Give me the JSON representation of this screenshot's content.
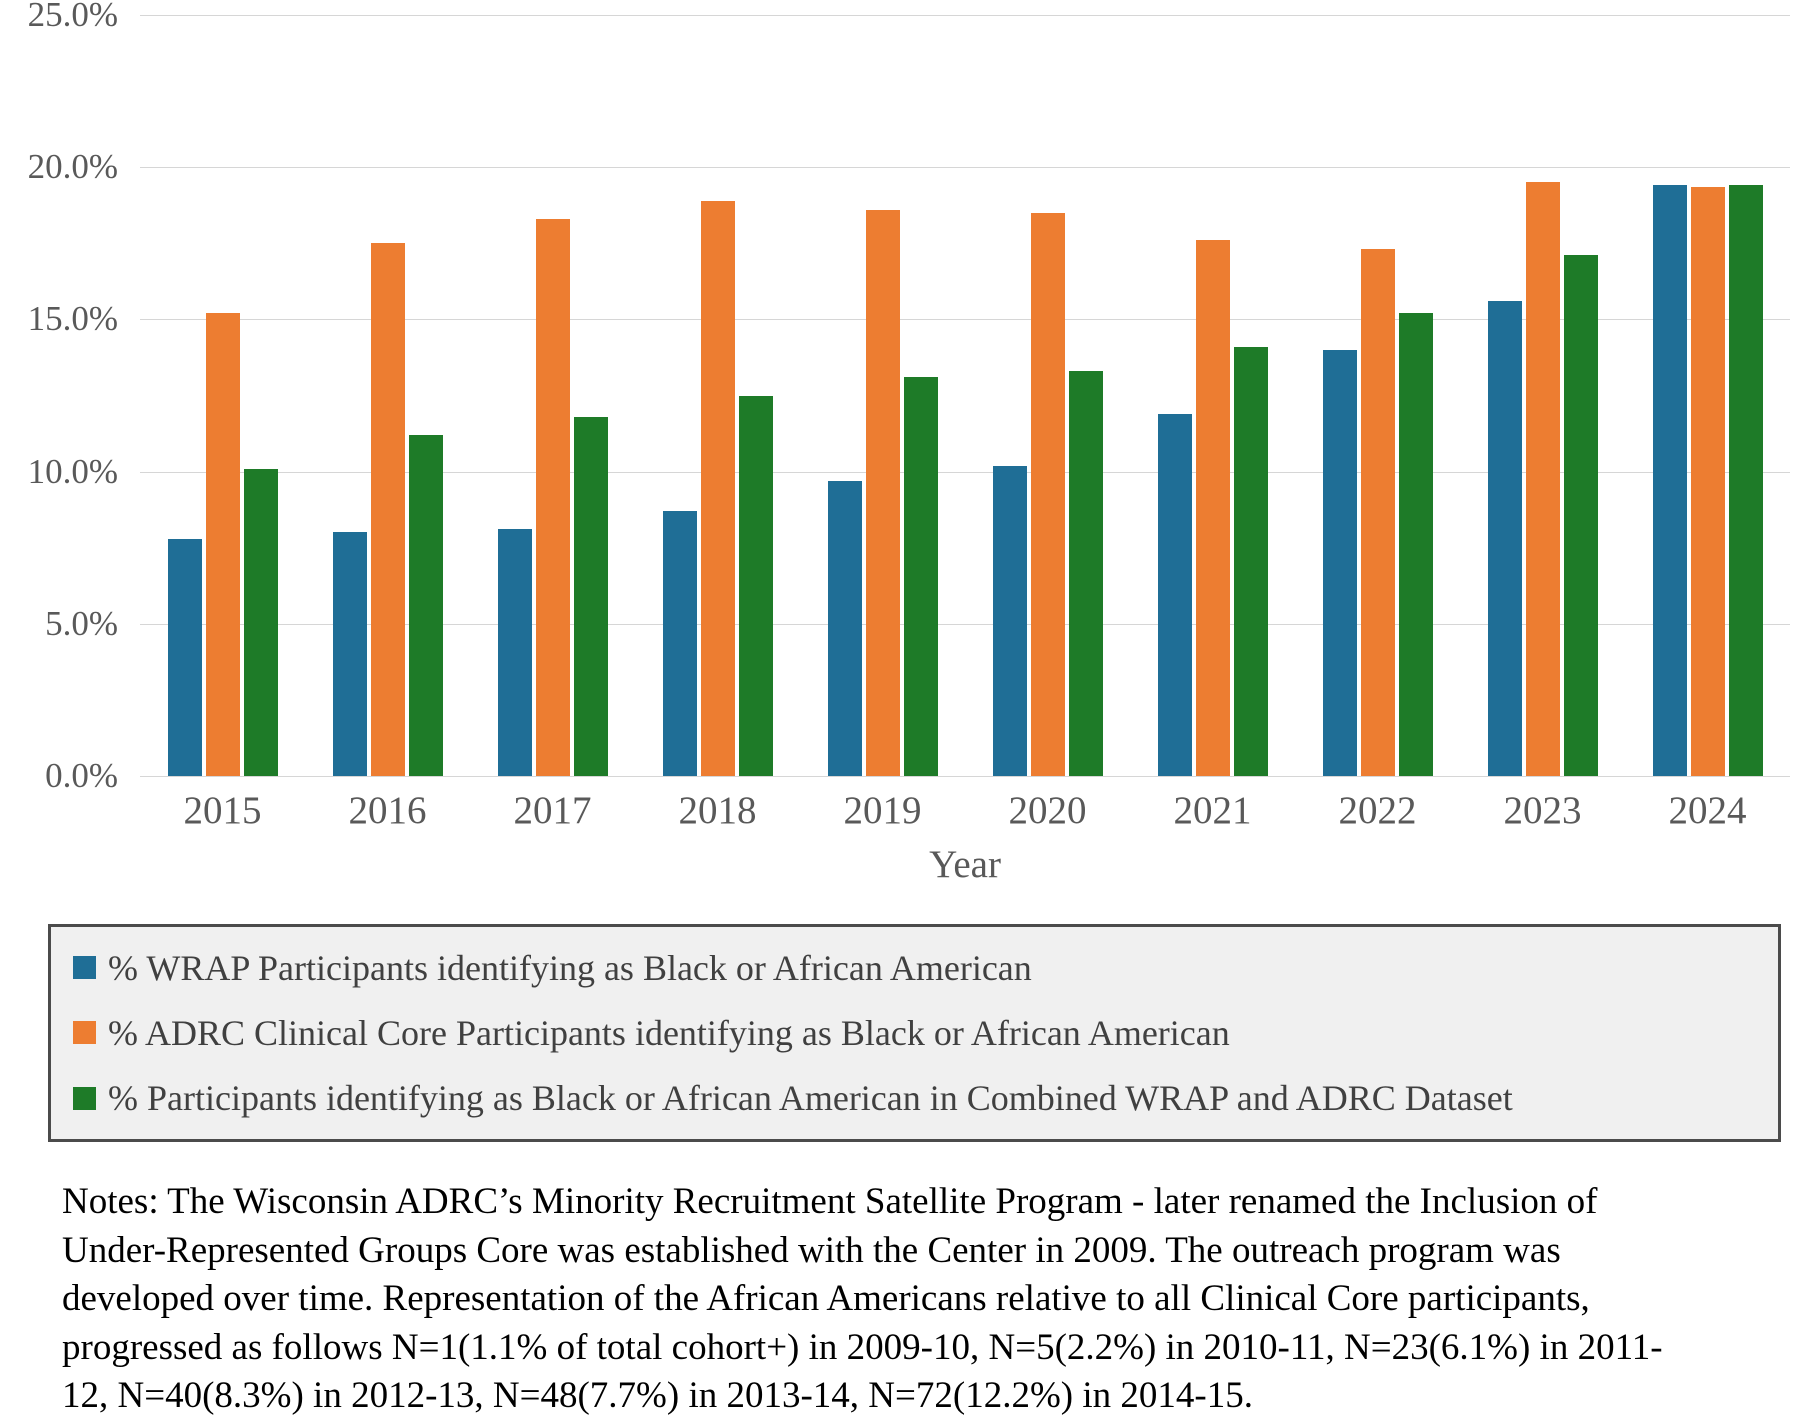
{
  "chart_data": {
    "type": "bar",
    "title": "",
    "xlabel": "Year",
    "ylabel": "",
    "ylim": [
      0,
      25
    ],
    "grid": true,
    "legend_position": "bottom",
    "yticks": [
      {
        "value": 0,
        "label": "0.0%"
      },
      {
        "value": 5,
        "label": "5.0%"
      },
      {
        "value": 10,
        "label": "10.0%"
      },
      {
        "value": 15,
        "label": "15.0%"
      },
      {
        "value": 20,
        "label": "20.0%"
      },
      {
        "value": 25,
        "label": "25.0%"
      }
    ],
    "categories": [
      "2015",
      "2016",
      "2017",
      "2018",
      "2019",
      "2020",
      "2021",
      "2022",
      "2023",
      "2024"
    ],
    "series": [
      {
        "name": "% WRAP Participants identifying as Black or African American",
        "color": "#1F6E96",
        "values": [
          7.8,
          8.0,
          8.1,
          8.7,
          9.7,
          10.2,
          11.9,
          14.0,
          15.6,
          19.4
        ]
      },
      {
        "name": "% ADRC Clinical Core Participants identifying as Black or African American",
        "color": "#ED7D31",
        "values": [
          15.2,
          17.5,
          18.3,
          18.9,
          18.6,
          18.5,
          17.6,
          17.3,
          19.5,
          19.35
        ]
      },
      {
        "name": "% Participants identifying as Black or African American in Combined WRAP and ADRC Dataset",
        "color": "#1E7B28",
        "values": [
          10.1,
          11.2,
          11.8,
          12.5,
          13.1,
          13.3,
          14.1,
          15.2,
          17.1,
          19.4
        ]
      }
    ]
  },
  "notes_lines": [
    "Notes: The Wisconsin ADRC’s Minority Recruitment Satellite Program - later renamed the Inclusion of",
    "Under-Represented Groups Core was established with the Center in 2009. The outreach program was",
    "developed over time. Representation of the African Americans relative to all Clinical Core participants,",
    "progressed as follows N=1(1.1% of total cohort+) in 2009-10, N=5(2.2%) in 2010-11, N=23(6.1%) in 2011-",
    "12, N=40(8.3%) in 2012-13, N=48(7.7%) in 2013-14, N=72(12.2%) in 2014-15."
  ]
}
